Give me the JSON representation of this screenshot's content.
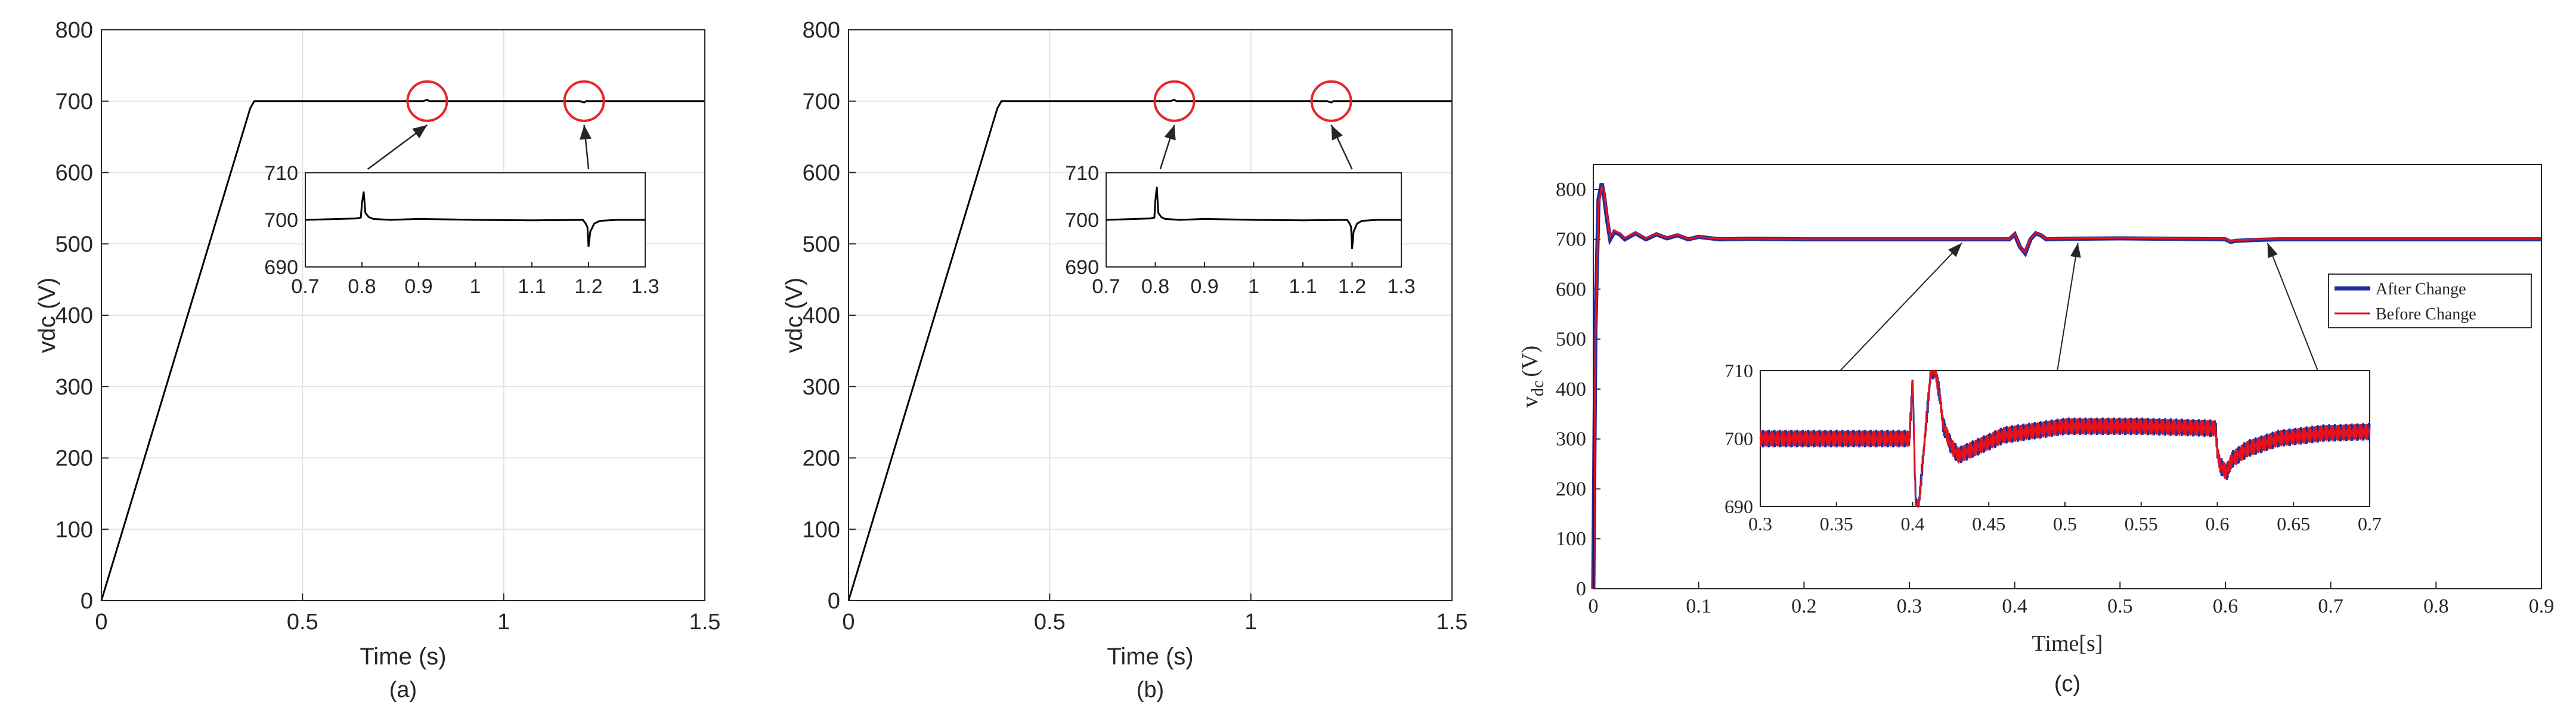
{
  "chart_data": [
    {
      "type": "line",
      "panel_label": "(a)",
      "xlabel": "Time (s)",
      "ylabel": "vdc (V)",
      "xlim": [
        0,
        1.5
      ],
      "ylim": [
        0,
        800
      ],
      "xticks": [
        0,
        0.5,
        1,
        1.5
      ],
      "xtick_labels": [
        "0",
        "0.5",
        "1",
        "1.5"
      ],
      "yticks": [
        0,
        100,
        200,
        300,
        400,
        500,
        600,
        700,
        800
      ],
      "ytick_labels": [
        "0",
        "100",
        "200",
        "300",
        "400",
        "500",
        "600",
        "700",
        "800"
      ],
      "grid": true,
      "series": [
        {
          "name": "vdc",
          "color": "#000000",
          "x": [
            0,
            0.37,
            0.38,
            0.8,
            0.805,
            0.81,
            0.815,
            1.19,
            1.195,
            1.2,
            1.205,
            1.5
          ],
          "y": [
            0,
            690,
            700,
            700,
            701,
            702,
            700,
            700,
            699,
            698,
            700,
            700
          ]
        }
      ],
      "highlight_circles_at_x": [
        0.81,
        1.2
      ],
      "inset": {
        "xlim": [
          0.7,
          1.3
        ],
        "ylim": [
          690,
          710
        ],
        "xticks": [
          0.7,
          0.8,
          0.9,
          1,
          1.1,
          1.2,
          1.3
        ],
        "xtick_labels": [
          "0.7",
          "0.8",
          "0.9",
          "1",
          "1.1",
          "1.2",
          "1.3"
        ],
        "yticks": [
          690,
          700,
          710
        ],
        "ytick_labels": [
          "690",
          "700",
          "710"
        ],
        "x": [
          0.7,
          0.79,
          0.798,
          0.8,
          0.803,
          0.806,
          0.812,
          0.82,
          0.85,
          0.9,
          1.0,
          1.1,
          1.19,
          1.195,
          1.198,
          1.2,
          1.203,
          1.21,
          1.22,
          1.25,
          1.3
        ],
        "y": [
          700,
          700.3,
          700.5,
          703.5,
          706,
          701.5,
          700.6,
          700.2,
          700,
          700.2,
          700,
          699.9,
          700,
          699.2,
          698.5,
          694.3,
          697.5,
          699.2,
          699.8,
          700,
          700
        ]
      }
    },
    {
      "type": "line",
      "panel_label": "(b)",
      "xlabel": "Time (s)",
      "ylabel": "vdc (V)",
      "xlim": [
        0,
        1.5
      ],
      "ylim": [
        0,
        800
      ],
      "xticks": [
        0,
        0.5,
        1,
        1.5
      ],
      "xtick_labels": [
        "0",
        "0.5",
        "1",
        "1.5"
      ],
      "yticks": [
        0,
        100,
        200,
        300,
        400,
        500,
        600,
        700,
        800
      ],
      "ytick_labels": [
        "0",
        "100",
        "200",
        "300",
        "400",
        "500",
        "600",
        "700",
        "800"
      ],
      "grid": true,
      "series": [
        {
          "name": "vdc",
          "color": "#000000",
          "x": [
            0,
            0.37,
            0.38,
            0.8,
            0.805,
            0.81,
            0.815,
            1.19,
            1.195,
            1.2,
            1.205,
            1.5
          ],
          "y": [
            0,
            690,
            700,
            700,
            701,
            702,
            700,
            700,
            699,
            698,
            700,
            700
          ]
        }
      ],
      "highlight_circles_at_x": [
        0.81,
        1.2
      ],
      "inset": {
        "xlim": [
          0.7,
          1.3
        ],
        "ylim": [
          690,
          710
        ],
        "xticks": [
          0.7,
          0.8,
          0.9,
          1,
          1.1,
          1.2,
          1.3
        ],
        "xtick_labels": [
          "0.7",
          "0.8",
          "0.9",
          "1",
          "1.1",
          "1.2",
          "1.3"
        ],
        "yticks": [
          690,
          700,
          710
        ],
        "ytick_labels": [
          "690",
          "700",
          "710"
        ],
        "x": [
          0.7,
          0.79,
          0.798,
          0.8,
          0.803,
          0.806,
          0.812,
          0.82,
          0.85,
          0.9,
          1.0,
          1.1,
          1.19,
          1.195,
          1.198,
          1.2,
          1.203,
          1.21,
          1.22,
          1.25,
          1.3
        ],
        "y": [
          700,
          700.3,
          700.5,
          704,
          707,
          701.5,
          700.6,
          700.2,
          700,
          700.2,
          700,
          699.9,
          700,
          699.2,
          698.5,
          693.8,
          697.5,
          699.2,
          699.8,
          700,
          700
        ]
      }
    },
    {
      "type": "line",
      "panel_label": "(c)",
      "xlabel": "Time[s]",
      "ylabel": "v",
      "ylabel_subscript": "dc",
      "ylabel_unit": "(V)",
      "xlim": [
        0,
        0.9
      ],
      "ylim": [
        0,
        850
      ],
      "xticks": [
        0,
        0.1,
        0.2,
        0.3,
        0.4,
        0.5,
        0.6,
        0.7,
        0.8,
        0.9
      ],
      "xtick_labels": [
        "0",
        "0.1",
        "0.2",
        "0.3",
        "0.4",
        "0.5",
        "0.6",
        "0.7",
        "0.8",
        "0.9"
      ],
      "yticks": [
        0,
        100,
        200,
        300,
        400,
        500,
        600,
        700,
        800
      ],
      "ytick_labels": [
        "0",
        "100",
        "200",
        "300",
        "400",
        "500",
        "600",
        "700",
        "800"
      ],
      "grid": false,
      "legend": [
        "After Change",
        "Before Change"
      ],
      "legend_position": "right",
      "series": [
        {
          "name": "After Change",
          "color": "#1f2f9c",
          "x": [
            0,
            0.002,
            0.005,
            0.008,
            0.01,
            0.013,
            0.016,
            0.02,
            0.025,
            0.03,
            0.04,
            0.05,
            0.06,
            0.07,
            0.08,
            0.09,
            0.1,
            0.12,
            0.15,
            0.2,
            0.3,
            0.395,
            0.4,
            0.405,
            0.41,
            0.415,
            0.42,
            0.425,
            0.43,
            0.45,
            0.5,
            0.6,
            0.605,
            0.61,
            0.63,
            0.65,
            0.7,
            0.9
          ],
          "y": [
            0,
            520,
            780,
            812,
            790,
            740,
            700,
            715,
            710,
            700,
            712,
            700,
            710,
            702,
            708,
            700,
            705,
            700,
            701,
            700,
            700,
            700,
            710,
            685,
            672,
            700,
            712,
            708,
            700,
            701,
            702,
            700,
            695,
            697,
            699,
            700,
            700,
            700
          ]
        },
        {
          "name": "Before Change",
          "color": "#e8101a",
          "x": [
            0,
            0.002,
            0.005,
            0.008,
            0.01,
            0.013,
            0.016,
            0.02,
            0.025,
            0.03,
            0.04,
            0.05,
            0.06,
            0.07,
            0.08,
            0.09,
            0.1,
            0.12,
            0.15,
            0.2,
            0.3,
            0.395,
            0.4,
            0.405,
            0.41,
            0.415,
            0.42,
            0.425,
            0.43,
            0.45,
            0.5,
            0.6,
            0.605,
            0.61,
            0.63,
            0.65,
            0.7,
            0.9
          ],
          "y": [
            0,
            500,
            770,
            805,
            795,
            748,
            705,
            718,
            712,
            703,
            713,
            702,
            711,
            703,
            709,
            701,
            705,
            701,
            701,
            700,
            700,
            700,
            711,
            686,
            674,
            701,
            713,
            709,
            701,
            702,
            703,
            701,
            696,
            698,
            700,
            701,
            701,
            701
          ]
        }
      ],
      "arrow_targets_x": [
        0.35,
        0.46,
        0.64
      ],
      "inset": {
        "xlim": [
          0.3,
          0.7
        ],
        "ylim": [
          690,
          710
        ],
        "xticks": [
          0.3,
          0.35,
          0.4,
          0.45,
          0.5,
          0.55,
          0.6,
          0.65,
          0.7
        ],
        "xtick_labels": [
          "0.3",
          "0.35",
          "0.4",
          "0.45",
          "0.5",
          "0.55",
          "0.6",
          "0.65",
          "0.7"
        ],
        "yticks": [
          690,
          700,
          710
        ],
        "ytick_labels": [
          "690",
          "700",
          "710"
        ],
        "x": [
          0.3,
          0.398,
          0.4,
          0.402,
          0.404,
          0.408,
          0.412,
          0.415,
          0.418,
          0.42,
          0.425,
          0.43,
          0.44,
          0.46,
          0.5,
          0.55,
          0.599,
          0.6,
          0.602,
          0.606,
          0.61,
          0.62,
          0.64,
          0.67,
          0.7
        ],
        "y": [
          700,
          700,
          709,
          690,
          690,
          700,
          710,
          710,
          706,
          702,
          699,
          697.5,
          698.5,
          700.5,
          701.8,
          701.8,
          701.5,
          698,
          696,
          695,
          697,
          698.5,
          700,
          700.8,
          701
        ]
      }
    }
  ]
}
